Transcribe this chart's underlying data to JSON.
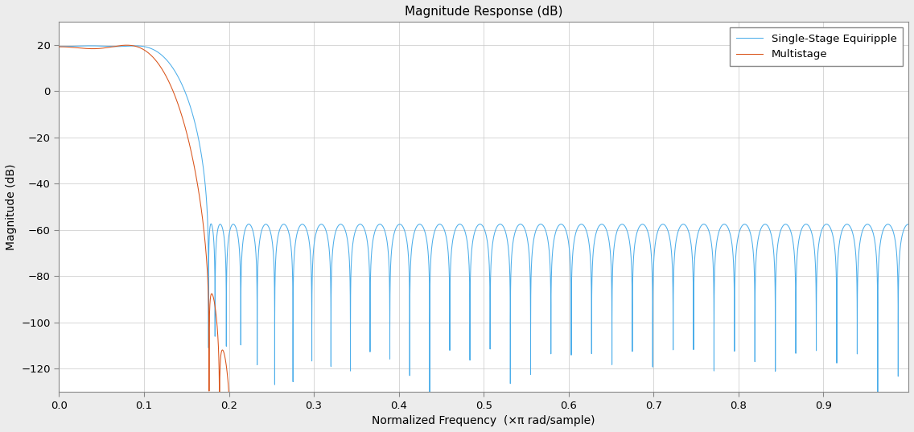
{
  "title": "Magnitude Response (dB)",
  "xlabel": "Normalized Frequency  (×π rad/sample)",
  "ylabel": "Magnitude (dB)",
  "xlim": [
    0,
    1.0
  ],
  "ylim": [
    -130,
    30
  ],
  "yticks": [
    20,
    0,
    -20,
    -40,
    -60,
    -80,
    -100,
    -120
  ],
  "xticks": [
    0,
    0.1,
    0.2,
    0.3,
    0.4,
    0.5,
    0.6,
    0.7,
    0.8,
    0.9
  ],
  "line1_color": "#4DAEEA",
  "line2_color": "#D95319",
  "legend_labels": [
    "Single-Stage Equiripple",
    "Multistage"
  ],
  "bg_color": "#ececec",
  "plot_bg": "#ffffff",
  "grid_color": "#c8c8c8",
  "title_fontsize": 11,
  "label_fontsize": 10,
  "tick_fontsize": 9.5
}
